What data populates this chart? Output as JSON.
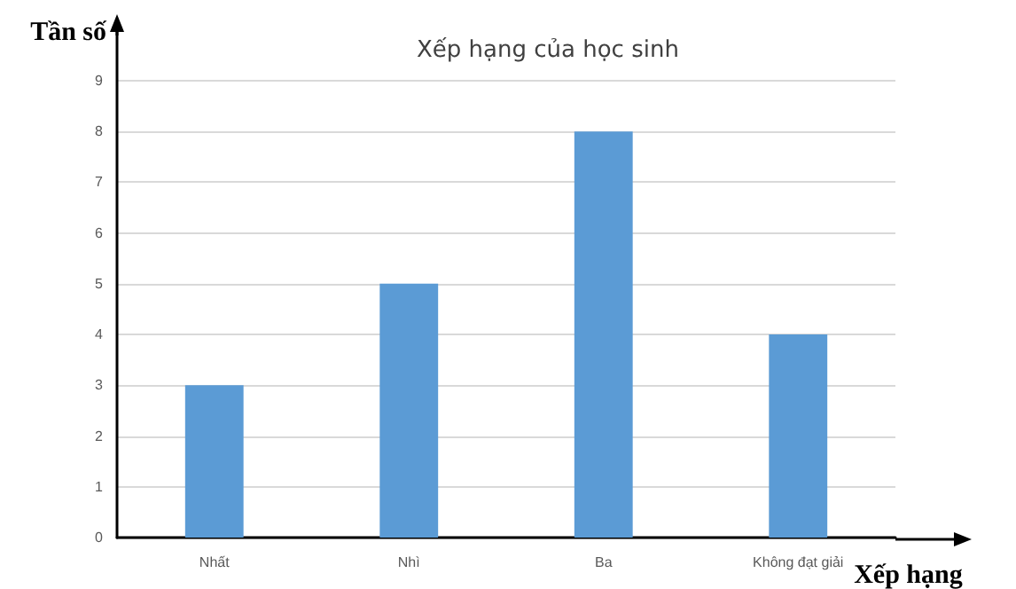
{
  "chart_data": {
    "type": "bar",
    "title": "Xếp hạng của học sinh",
    "xlabel": "Xếp hạng",
    "ylabel": "Tần số",
    "categories": [
      "Nhất",
      "Nhì",
      "Ba",
      "Không đạt giải"
    ],
    "values": [
      3,
      5,
      8,
      4
    ],
    "color": "#5b9bd5",
    "ylim": [
      0,
      10.1
    ],
    "yticks": [
      0,
      1,
      2,
      3,
      4,
      5,
      6,
      7,
      8,
      9
    ],
    "grid": "y"
  }
}
